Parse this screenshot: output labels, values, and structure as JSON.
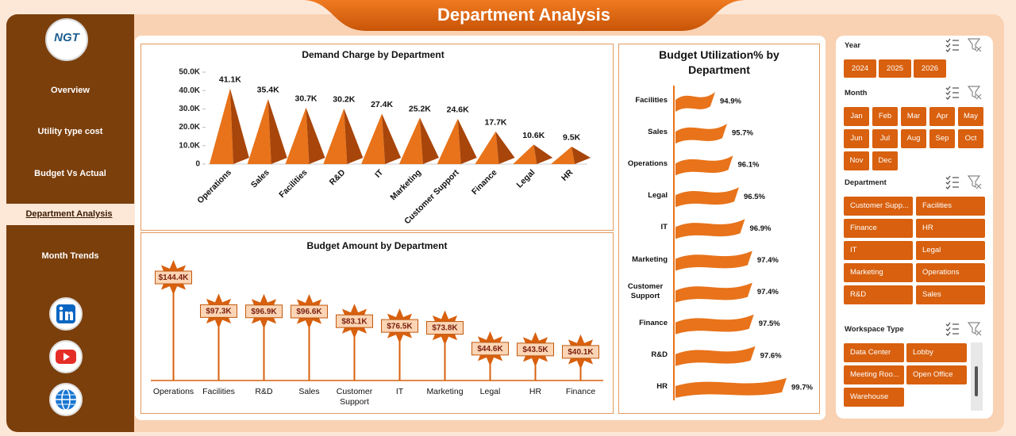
{
  "header": {
    "title": "Department Analysis",
    "logo": "NGT"
  },
  "sidebar": {
    "nav": [
      {
        "label": "Overview",
        "active": false
      },
      {
        "label": "Utility type cost",
        "active": false
      },
      {
        "label": "Budget Vs Actual",
        "active": false
      },
      {
        "label": "Department Analysis",
        "active": true
      },
      {
        "label": "Month Trends",
        "active": false
      }
    ]
  },
  "chart_data": [
    {
      "type": "pyramid-bar",
      "title": "Demand Charge by Department",
      "categories": [
        "Operations",
        "Sales",
        "Facilities",
        "R&D",
        "IT",
        "Marketing",
        "Customer Support",
        "Finance",
        "Legal",
        "HR"
      ],
      "values": [
        41100,
        35400,
        30700,
        30200,
        27400,
        25200,
        24600,
        17700,
        10600,
        9500
      ],
      "value_labels": [
        "41.1K",
        "35.4K",
        "30.7K",
        "30.2K",
        "27.4K",
        "25.2K",
        "24.6K",
        "17.7K",
        "10.6K",
        "9.5K"
      ],
      "ylim": [
        0,
        50000
      ],
      "yticks": [
        0,
        {
          "value": 10000,
          "label": "10.0K"
        },
        {
          "value": 20000,
          "label": "20.0K"
        },
        {
          "value": 30000,
          "label": "30.0K"
        },
        {
          "value": 40000,
          "label": "40.0K"
        },
        {
          "value": 50000,
          "label": "50.0K"
        }
      ],
      "color": "#e8731a"
    },
    {
      "type": "lollipop",
      "title": "Budget Amount by Department",
      "categories": [
        "Operations",
        "Facilities",
        "R&D",
        "Sales",
        "Customer Support",
        "IT",
        "Marketing",
        "Legal",
        "HR",
        "Finance"
      ],
      "values": [
        144400,
        97300,
        96900,
        96600,
        83100,
        76500,
        73800,
        44600,
        43500,
        40100
      ],
      "value_labels": [
        "$144.4K",
        "$97.3K",
        "$96.9K",
        "$96.6K",
        "$83.1K",
        "$76.5K",
        "$73.8K",
        "$44.6K",
        "$43.5K",
        "$40.1K"
      ],
      "color": "#d8600e"
    },
    {
      "type": "flag-bar",
      "title": "Budget Utilization% by Department",
      "categories": [
        "Facilities",
        "Sales",
        "Operations",
        "Legal",
        "IT",
        "Marketing",
        "Customer Support",
        "Finance",
        "R&D",
        "HR"
      ],
      "values": [
        94.9,
        95.7,
        96.1,
        96.5,
        96.9,
        97.4,
        97.4,
        97.5,
        97.6,
        99.7
      ],
      "value_labels": [
        "94.9%",
        "95.7%",
        "96.1%",
        "96.5%",
        "96.9%",
        "97.4%",
        "97.4%",
        "97.5%",
        "97.6%",
        "99.7%"
      ],
      "color": "#e8731a"
    }
  ],
  "slicers": [
    {
      "title": "Year",
      "items": [
        "2024",
        "2025",
        "2026"
      ]
    },
    {
      "title": "Month",
      "items": [
        "Jan",
        "Feb",
        "Mar",
        "Apr",
        "May",
        "Jun",
        "Jul",
        "Aug",
        "Sep",
        "Oct",
        "Nov",
        "Dec"
      ]
    },
    {
      "title": "Department",
      "items": [
        "Customer Supp...",
        "Facilities",
        "Finance",
        "HR",
        "IT",
        "Legal",
        "Marketing",
        "Operations",
        "R&D",
        "Sales"
      ]
    },
    {
      "title": "Workspace Type",
      "items": [
        "Data Center",
        "Lobby",
        "Meeting Roo...",
        "Open Office",
        "Warehouse"
      ]
    }
  ]
}
